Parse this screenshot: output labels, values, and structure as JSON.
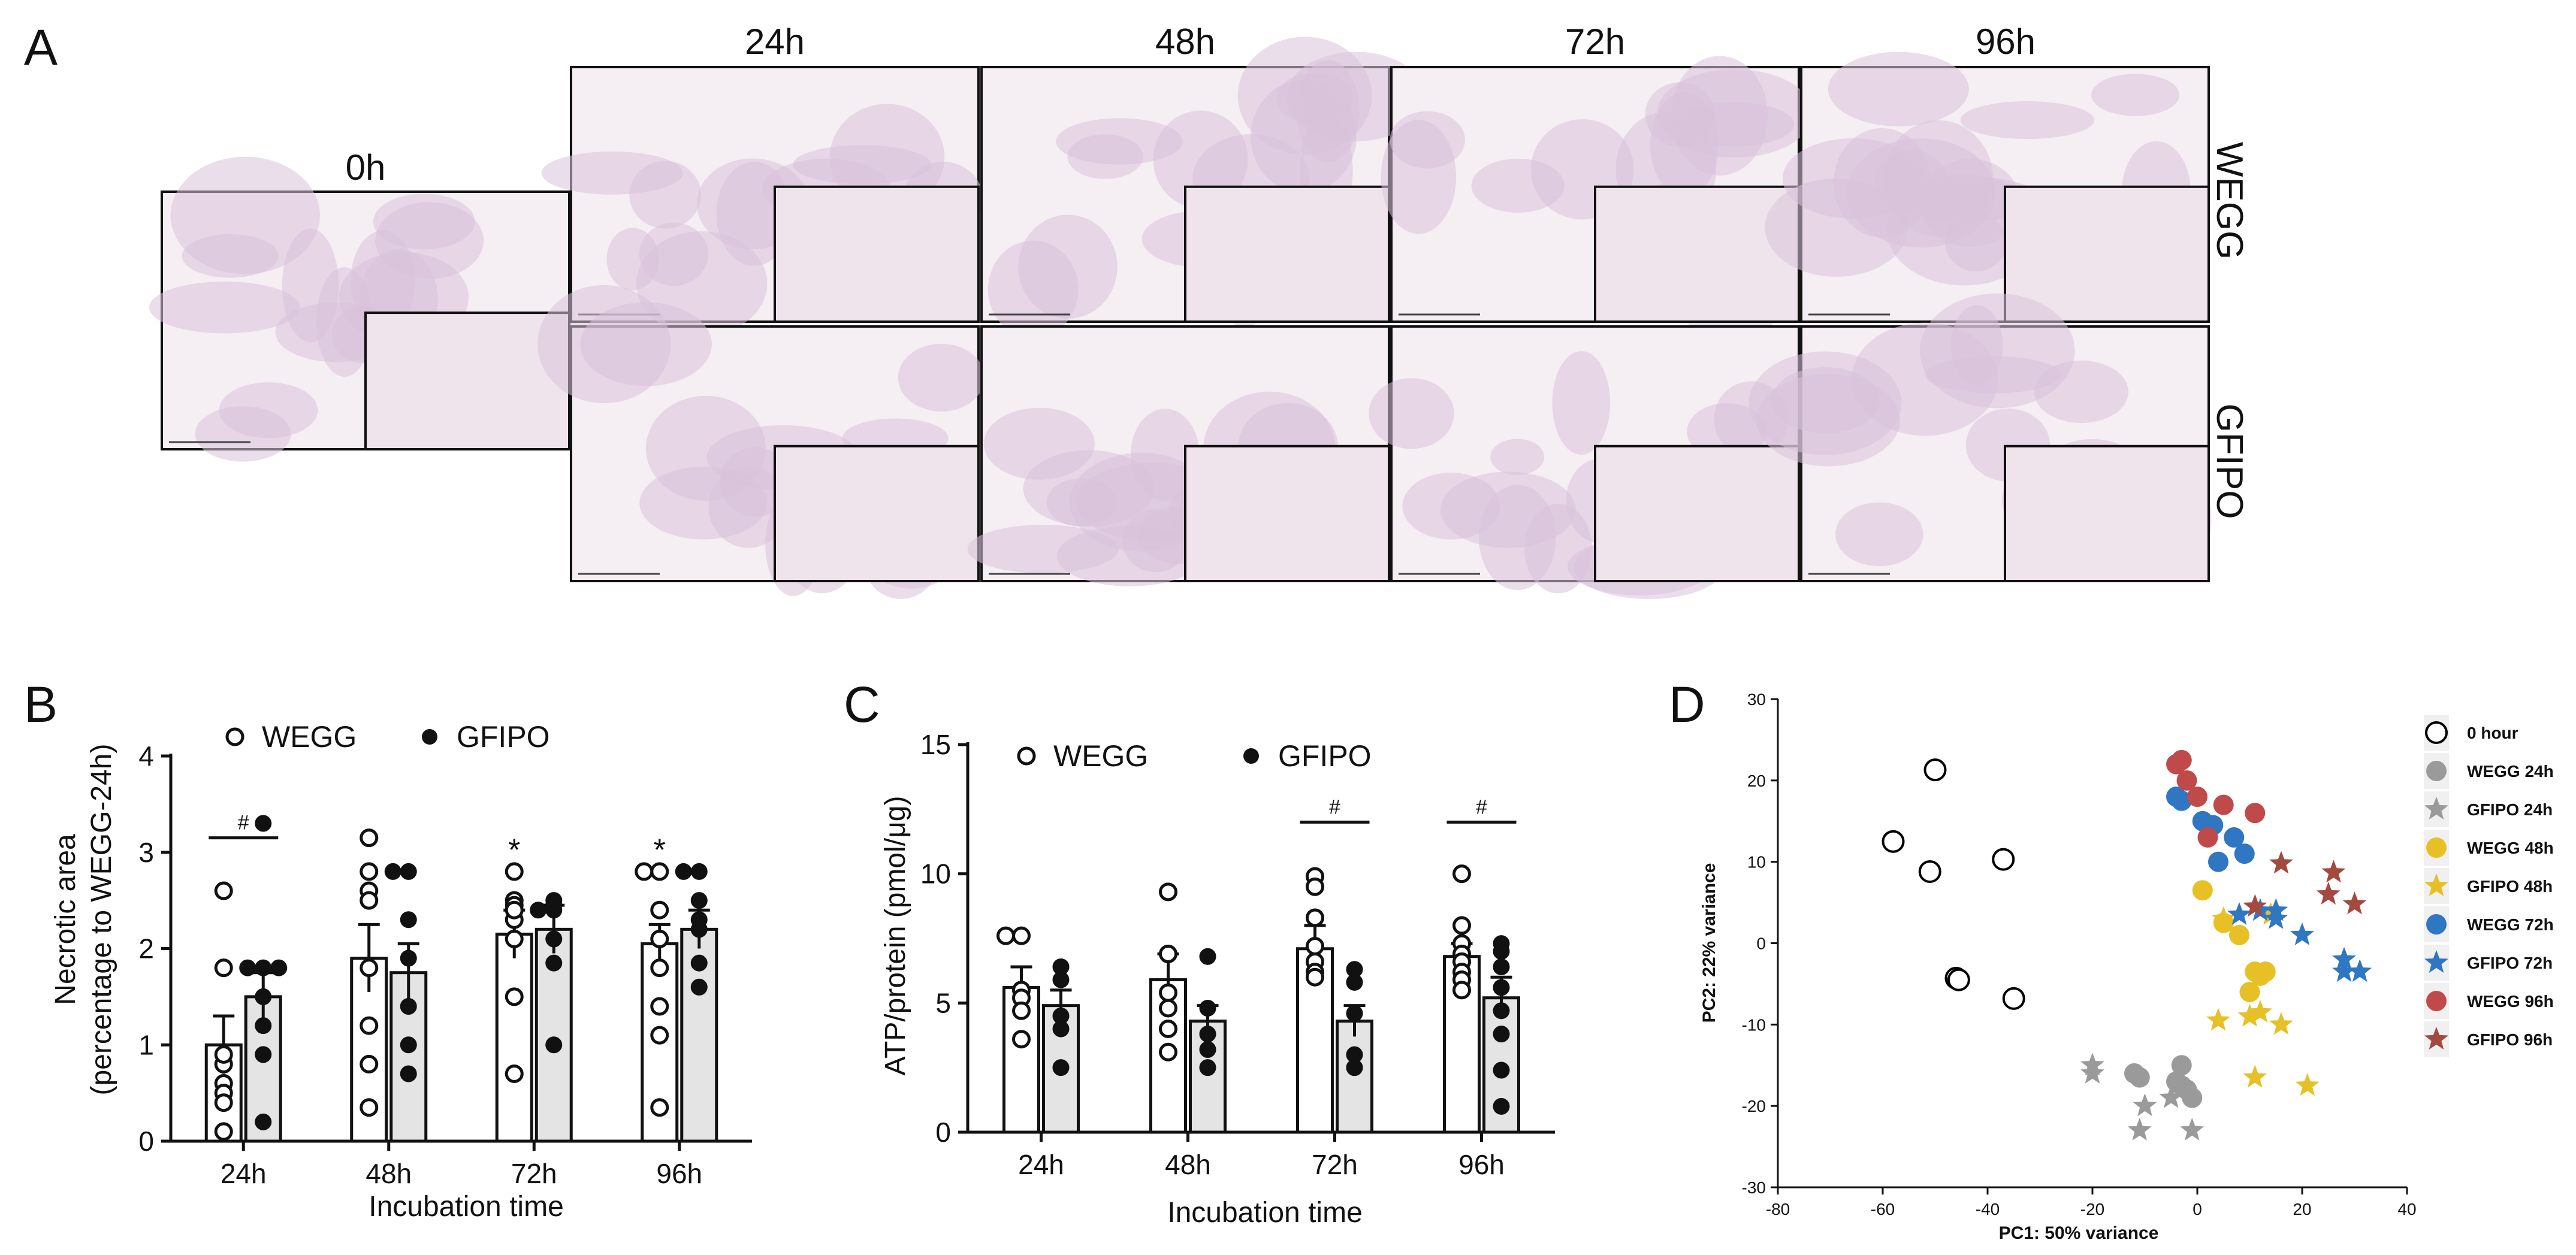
{
  "panels": {
    "a": {
      "label": "A",
      "zero_label": "0h",
      "time_labels": [
        "24h",
        "48h",
        "72h",
        "96h"
      ],
      "row_labels": [
        "WEGG",
        "GFIPO"
      ],
      "tissue_color": "#d9c2db",
      "background_color": "#f5eef3"
    },
    "b": {
      "label": "B"
    },
    "c": {
      "label": "C"
    },
    "d": {
      "label": "D"
    }
  },
  "chart_data": [
    {
      "id": "B",
      "type": "bar",
      "xlabel": "Incubation time",
      "ylabel_line1": "Necrotic area",
      "ylabel_line2": "(percentage to WEGG-24h)",
      "ylim": [
        0,
        4
      ],
      "yticks": [
        "0",
        "1",
        "2",
        "3",
        "4"
      ],
      "categories": [
        "24h",
        "48h",
        "72h",
        "96h"
      ],
      "legend": [
        "WEGG",
        "GFIPO"
      ],
      "series": [
        {
          "name": "WEGG",
          "fill": "#ffffff",
          "marker": "open-circle",
          "values": [
            1.0,
            1.9,
            2.15,
            2.05
          ],
          "errors": [
            0.3,
            0.35,
            0.25,
            0.2
          ],
          "points": [
            [
              2.6,
              1.8,
              0.8,
              0.6,
              0.5,
              0.4,
              0.1,
              0.9
            ],
            [
              3.15,
              2.8,
              2.6,
              2.5,
              1.8,
              1.2,
              0.8,
              0.35
            ],
            [
              2.8,
              2.5,
              2.45,
              2.3,
              2.1,
              1.5,
              0.7,
              2.4
            ],
            [
              2.8,
              2.8,
              2.4,
              2.1,
              1.8,
              1.4,
              1.1,
              0.35
            ]
          ]
        },
        {
          "name": "GFIPO",
          "fill": "#e4e4e4",
          "marker": "filled-circle",
          "values": [
            1.5,
            1.75,
            2.2,
            2.2
          ],
          "errors": [
            0.25,
            0.3,
            0.25,
            0.2
          ],
          "points": [
            [
              3.3,
              1.8,
              1.8,
              1.8,
              1.5,
              1.2,
              0.9,
              0.2
            ],
            [
              2.8,
              2.8,
              2.3,
              1.9,
              1.4,
              1.0,
              0.7
            ],
            [
              2.5,
              2.45,
              2.4,
              2.4,
              2.1,
              1.85,
              1.0
            ],
            [
              2.8,
              2.8,
              2.5,
              2.3,
              2.2,
              1.85,
              1.6
            ]
          ]
        }
      ],
      "annotations": [
        {
          "category": "24h",
          "symbol": "#",
          "type": "bracket",
          "y": 3.15
        },
        {
          "category": "72h",
          "symbol": "*",
          "type": "star",
          "y": 3.05,
          "series": "WEGG"
        },
        {
          "category": "96h",
          "symbol": "*",
          "type": "star",
          "y": 3.05,
          "series": "WEGG"
        }
      ]
    },
    {
      "id": "C",
      "type": "bar",
      "xlabel": "Incubation time",
      "ylabel": "ATP/protein (pmol/μg)",
      "ylim": [
        0,
        15
      ],
      "yticks": [
        "0",
        "5",
        "10",
        "15"
      ],
      "categories": [
        "24h",
        "48h",
        "72h",
        "96h"
      ],
      "legend": [
        "WEGG",
        "GFIPO"
      ],
      "series": [
        {
          "name": "WEGG",
          "fill": "#ffffff",
          "marker": "open-circle",
          "values": [
            5.6,
            5.9,
            7.1,
            6.8
          ],
          "errors": [
            0.8,
            1.0,
            0.9,
            0.5
          ],
          "points": [
            [
              7.6,
              7.6,
              5.5,
              5.2,
              4.7,
              3.6
            ],
            [
              9.3,
              6.9,
              5.4,
              4.8,
              4.0,
              3.1
            ],
            [
              9.9,
              9.5,
              8.3,
              7.2,
              6.6,
              6.2,
              6.0
            ],
            [
              10.0,
              8.0,
              7.3,
              6.9,
              6.6,
              6.2,
              5.9,
              5.5
            ]
          ]
        },
        {
          "name": "GFIPO",
          "fill": "#e4e4e4",
          "marker": "filled-circle",
          "values": [
            4.9,
            4.3,
            4.3,
            5.2
          ],
          "errors": [
            0.6,
            0.6,
            0.6,
            0.8
          ],
          "points": [
            [
              6.4,
              5.9,
              4.5,
              4.0,
              2.5
            ],
            [
              6.8,
              4.8,
              3.8,
              3.2,
              2.5
            ],
            [
              6.3,
              5.8,
              4.6,
              3.0,
              2.5
            ],
            [
              7.3,
              7.0,
              6.4,
              5.6,
              4.7,
              3.8,
              2.4,
              1.0
            ]
          ]
        }
      ],
      "annotations": [
        {
          "category": "72h",
          "symbol": "#",
          "type": "bracket",
          "y": 12.0
        },
        {
          "category": "96h",
          "symbol": "#",
          "type": "bracket",
          "y": 12.0
        }
      ]
    },
    {
      "id": "D",
      "type": "scatter",
      "xlabel": "PC1: 50% variance",
      "ylabel": "PC2: 22% variance",
      "xlim": [
        -80,
        40
      ],
      "ylim": [
        -30,
        30
      ],
      "xticks": [
        -80,
        -60,
        -40,
        -20,
        0,
        20,
        40
      ],
      "yticks": [
        -30,
        -20,
        -10,
        0,
        10,
        20,
        30
      ],
      "series": [
        {
          "name": "0 hour",
          "marker": "open-circle",
          "color": "#000000",
          "points": [
            [
              -50,
              21.3
            ],
            [
              -58,
              12.5
            ],
            [
              -51,
              8.8
            ],
            [
              -37,
              10.3
            ],
            [
              -46,
              -4.3
            ],
            [
              -45.5,
              -4.5
            ],
            [
              -35,
              -6.8
            ]
          ]
        },
        {
          "name": "WEGG 24h",
          "marker": "circle",
          "color": "#9a9a9a",
          "points": [
            [
              -12,
              -16
            ],
            [
              -11,
              -16.5
            ],
            [
              -4,
              -17
            ],
            [
              -3,
              -15
            ],
            [
              -2,
              -18
            ],
            [
              -1,
              -19
            ],
            [
              -3,
              -17.5
            ]
          ]
        },
        {
          "name": "GFIPO 24h",
          "marker": "star",
          "color": "#9a9a9a",
          "points": [
            [
              -20,
              -15
            ],
            [
              -20,
              -16
            ],
            [
              -10,
              -20
            ],
            [
              -11,
              -23
            ],
            [
              -5,
              -19
            ],
            [
              -1,
              -23
            ]
          ]
        },
        {
          "name": "WEGG 48h",
          "marker": "circle",
          "color": "#e6c025",
          "points": [
            [
              1,
              6.5
            ],
            [
              5,
              2.5
            ],
            [
              8,
              1
            ],
            [
              11,
              -3.5
            ],
            [
              12,
              -4
            ],
            [
              10,
              -6
            ],
            [
              13,
              -3.5
            ]
          ]
        },
        {
          "name": "GFIPO 48h",
          "marker": "star",
          "color": "#e6c025",
          "points": [
            [
              5,
              3
            ],
            [
              4,
              -9.5
            ],
            [
              10,
              -9
            ],
            [
              11,
              -16.5
            ],
            [
              12,
              -8.5
            ],
            [
              16,
              -10
            ],
            [
              21,
              -17.5
            ],
            [
              14,
              3.5
            ]
          ]
        },
        {
          "name": "WEGG 72h",
          "marker": "circle",
          "color": "#2f76c3",
          "points": [
            [
              -4,
              18
            ],
            [
              -3,
              17.5
            ],
            [
              1,
              15
            ],
            [
              3,
              14.5
            ],
            [
              7,
              13
            ],
            [
              9,
              11
            ],
            [
              4,
              10
            ]
          ]
        },
        {
          "name": "GFIPO 72h",
          "marker": "star",
          "color": "#2f76c3",
          "points": [
            [
              8,
              3.5
            ],
            [
              12,
              4
            ],
            [
              15,
              3
            ],
            [
              20,
              1
            ],
            [
              28,
              -2
            ],
            [
              28,
              -3.5
            ],
            [
              31,
              -3.5
            ],
            [
              15,
              4
            ]
          ]
        },
        {
          "name": "WEGG 96h",
          "marker": "circle",
          "color": "#c04a4a",
          "points": [
            [
              -4,
              22
            ],
            [
              -3,
              22.5
            ],
            [
              -2,
              20
            ],
            [
              0,
              18
            ],
            [
              5,
              17
            ],
            [
              11,
              16
            ],
            [
              2,
              13
            ]
          ]
        },
        {
          "name": "GFIPO 96h",
          "marker": "star",
          "color": "#a34a40",
          "points": [
            [
              16,
              9.8
            ],
            [
              26,
              8.7
            ],
            [
              25,
              6
            ],
            [
              30,
              4.8
            ],
            [
              11,
              4.5
            ]
          ]
        }
      ]
    }
  ]
}
